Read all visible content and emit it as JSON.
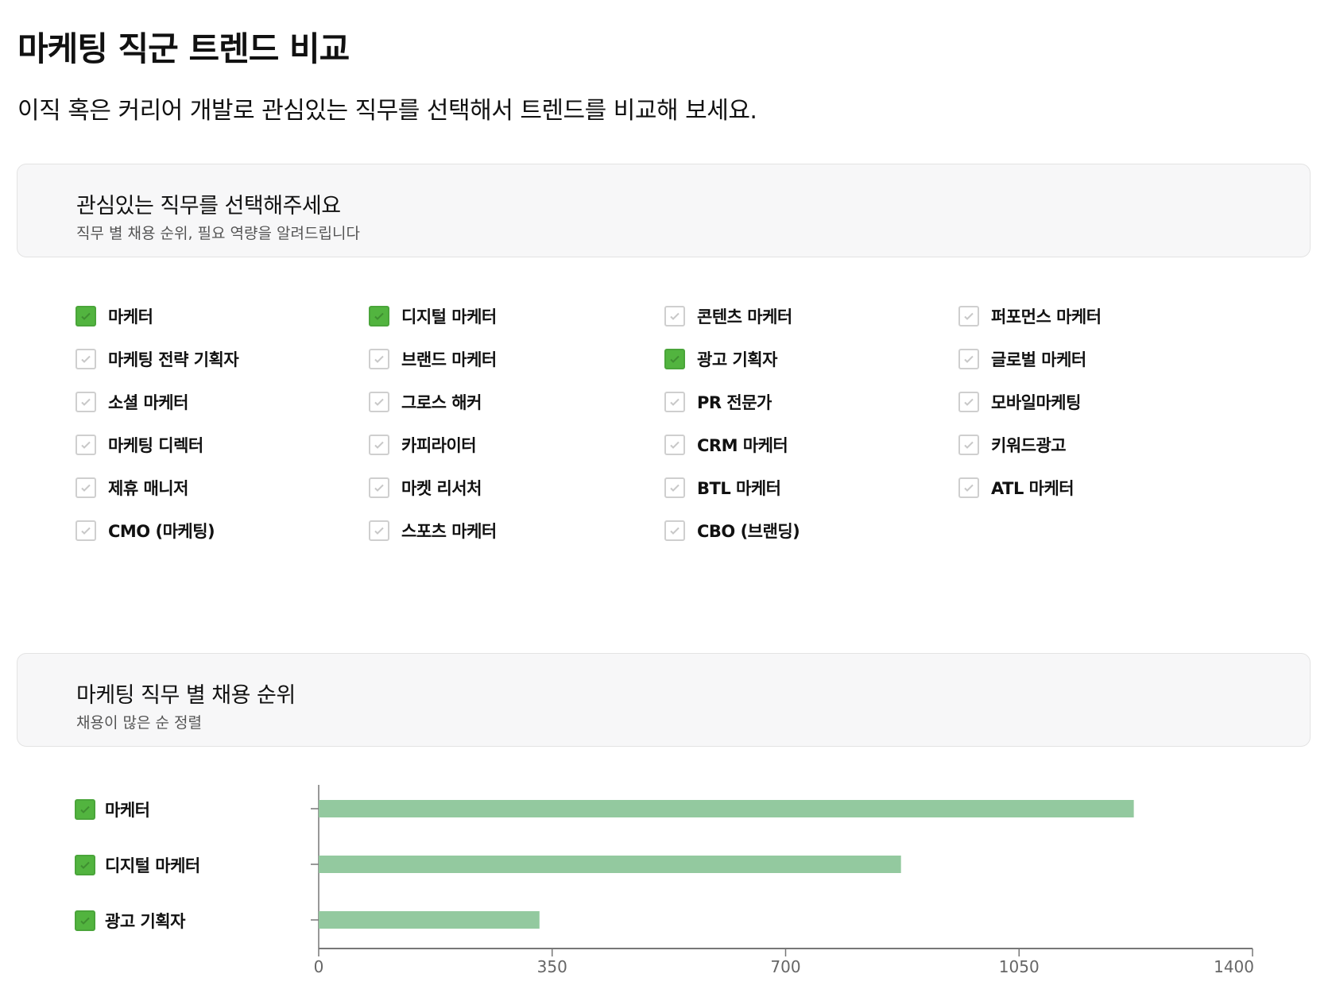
{
  "header": {
    "title": "마케팅 직군 트렌드 비교",
    "subtitle": "이직 혹은 커리어 개발로 관심있는 직무를 선택해서 트렌드를 비교해 보세요."
  },
  "select_panel": {
    "heading": "관심있는 직무를 선택해주세요",
    "subheading": "직무 별 채용 순위, 필요 역량을 알려드립니다"
  },
  "jobs": [
    [
      {
        "label": "마케터",
        "checked": true
      },
      {
        "label": "마케팅 전략 기획자",
        "checked": false
      },
      {
        "label": "소셜 마케터",
        "checked": false
      },
      {
        "label": "마케팅 디렉터",
        "checked": false
      },
      {
        "label": "제휴 매니저",
        "checked": false
      },
      {
        "label": "CMO (마케팅)",
        "checked": false
      }
    ],
    [
      {
        "label": "디지털 마케터",
        "checked": true
      },
      {
        "label": "브랜드 마케터",
        "checked": false
      },
      {
        "label": "그로스 해커",
        "checked": false
      },
      {
        "label": "카피라이터",
        "checked": false
      },
      {
        "label": "마켓 리서처",
        "checked": false
      },
      {
        "label": "스포츠 마케터",
        "checked": false
      }
    ],
    [
      {
        "label": "콘텐츠 마케터",
        "checked": false
      },
      {
        "label": "광고 기획자",
        "checked": true
      },
      {
        "label": "PR 전문가",
        "checked": false
      },
      {
        "label": "CRM 마케터",
        "checked": false
      },
      {
        "label": "BTL 마케터",
        "checked": false
      },
      {
        "label": "CBO (브랜딩)",
        "checked": false
      }
    ],
    [
      {
        "label": "퍼포먼스 마케터",
        "checked": false
      },
      {
        "label": "글로벌 마케터",
        "checked": false
      },
      {
        "label": "모바일마케팅",
        "checked": false
      },
      {
        "label": "키워드광고",
        "checked": false
      },
      {
        "label": "ATL 마케터",
        "checked": false
      }
    ]
  ],
  "rank_panel": {
    "heading": "마케팅 직무 별 채용 순위",
    "subheading": "채용이 많은 순 정렬"
  },
  "colors": {
    "checked": "#52b43f",
    "bar": "#93c99f",
    "axis": "#777777"
  },
  "chart_data": {
    "type": "bar",
    "orientation": "horizontal",
    "categories": [
      "마케터",
      "디지털 마케터",
      "광고 기획자"
    ],
    "values": [
      1222,
      873,
      331
    ],
    "xlim": [
      0,
      1400
    ],
    "xticks": [
      "0",
      "350",
      "700",
      "1050",
      "1400"
    ],
    "grid": false
  }
}
